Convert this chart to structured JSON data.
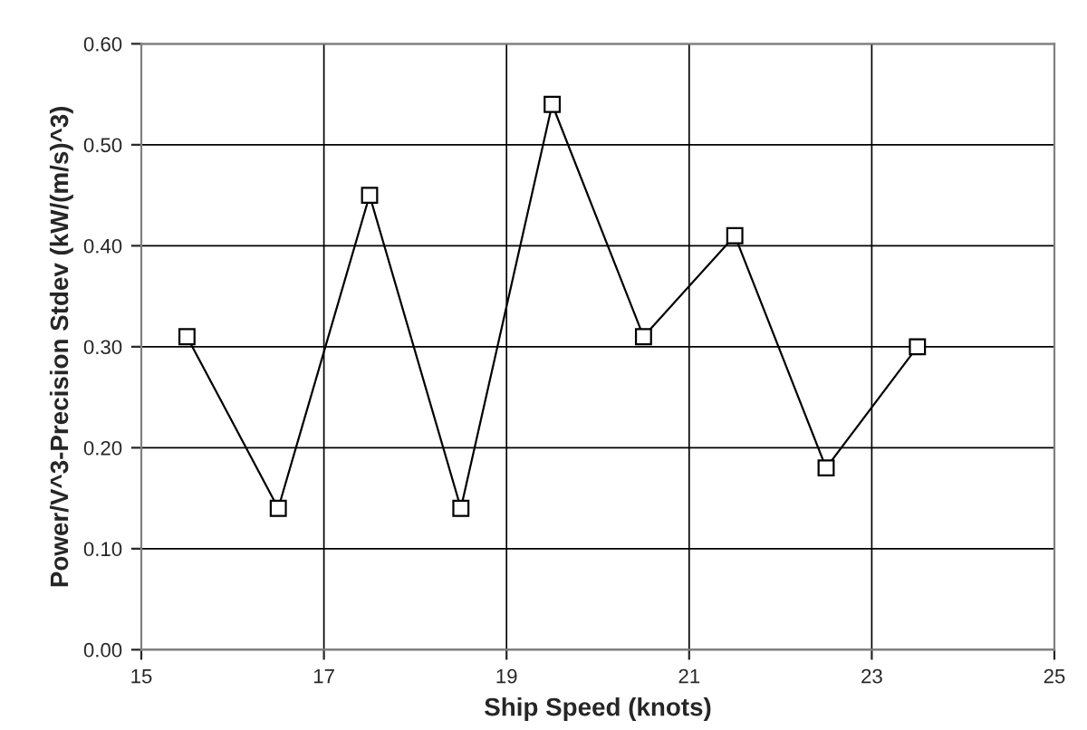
{
  "chart_data": {
    "type": "line",
    "xlabel": "Ship Speed (knots)",
    "ylabel": "Power/V^3-Precision Stdev (kW/(m/s)^3)",
    "x": [
      15.5,
      16.5,
      17.5,
      18.5,
      19.5,
      20.5,
      21.5,
      22.5,
      23.5
    ],
    "series": [
      {
        "color": "#000000",
        "values": [
          0.31,
          0.14,
          0.45,
          0.14,
          0.54,
          0.31,
          0.41,
          0.18,
          0.3
        ]
      }
    ],
    "xlim": [
      15,
      25
    ],
    "xticks": [
      15,
      17,
      19,
      21,
      23,
      25
    ],
    "ylim": [
      0,
      0.6
    ],
    "yticks": [
      {
        "value": 0,
        "label": "0.00"
      },
      {
        "value": 0.1,
        "label": "0.10"
      },
      {
        "value": 0.2,
        "label": "0.20"
      },
      {
        "value": 0.3,
        "label": "0.30"
      },
      {
        "value": 0.4,
        "label": "0.40"
      },
      {
        "value": 0.5,
        "label": "0.50"
      },
      {
        "value": 0.6,
        "label": "0.60"
      }
    ],
    "grid": true,
    "marker": "square",
    "line_style": "solid",
    "legend": false
  }
}
